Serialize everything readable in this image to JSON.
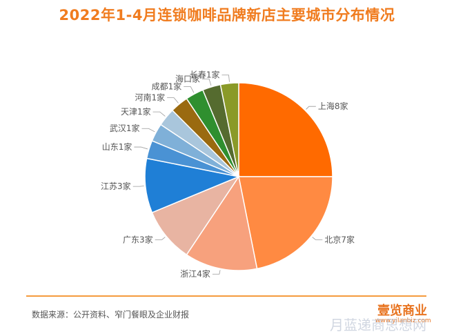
{
  "title": "2022年1-4月连锁咖啡品牌新店主要城市分布情况",
  "source": "数据来源：公开资料、窄门餐眼及企业财报",
  "logo": "壹览商业",
  "logo_url": "www.yilanbiz.com",
  "watermark": "月蓝递商思想网",
  "chart_data": {
    "type": "pie",
    "title": "2022年1-4月连锁咖啡品牌新店主要城市分布情况",
    "unit": "家",
    "slices": [
      {
        "label": "上海8家",
        "value": 8,
        "color": "#ff6a00"
      },
      {
        "label": "北京7家",
        "value": 7,
        "color": "#ff8a42"
      },
      {
        "label": "浙江4家",
        "value": 4,
        "color": "#f7a17d"
      },
      {
        "label": "广东3家",
        "value": 3,
        "color": "#e8b4a2"
      },
      {
        "label": "江苏3家",
        "value": 3,
        "color": "#1f7fd6"
      },
      {
        "label": "山东1家",
        "value": 1,
        "color": "#4a92d4"
      },
      {
        "label": "武汉1家",
        "value": 1,
        "color": "#7fb0d8"
      },
      {
        "label": "天津1家",
        "value": 1,
        "color": "#a9c6dc"
      },
      {
        "label": "河南1家",
        "value": 1,
        "color": "#9a6a10"
      },
      {
        "label": "成都1家",
        "value": 1,
        "color": "#2f8f2f"
      },
      {
        "label": "海口家",
        "value": 1,
        "color": "#556b2f"
      },
      {
        "label": "长春1家",
        "value": 1,
        "color": "#8a9a28"
      }
    ]
  }
}
